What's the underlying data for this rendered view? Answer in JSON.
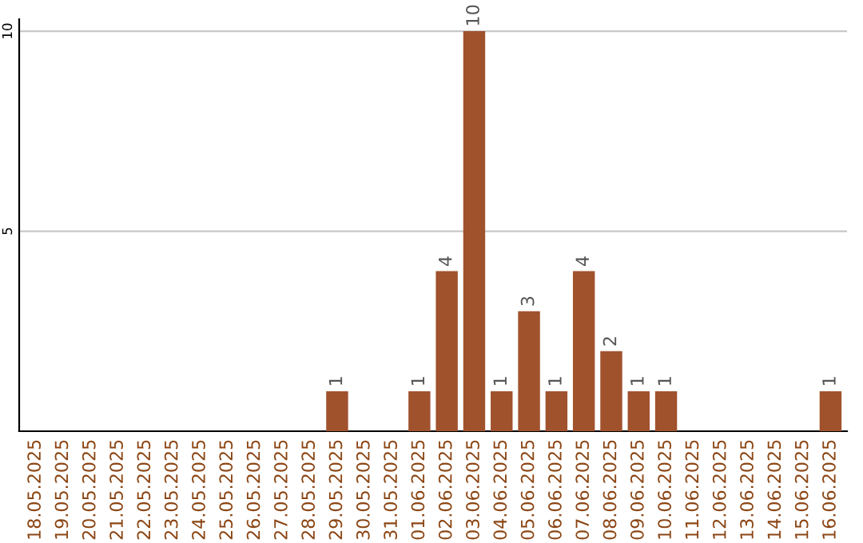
{
  "chart_data": {
    "type": "bar",
    "categories": [
      "18.05.2025",
      "19.05.2025",
      "20.05.2025",
      "21.05.2025",
      "22.05.2025",
      "23.05.2025",
      "24.05.2025",
      "25.05.2025",
      "26.05.2025",
      "27.05.2025",
      "28.05.2025",
      "29.05.2025",
      "30.05.2025",
      "31.05.2025",
      "01.06.2025",
      "02.06.2025",
      "03.06.2025",
      "04.06.2025",
      "05.06.2025",
      "06.06.2025",
      "07.06.2025",
      "08.06.2025",
      "09.06.2025",
      "10.06.2025",
      "11.06.2025",
      "12.06.2025",
      "13.06.2025",
      "14.06.2025",
      "15.06.2025",
      "16.06.2025"
    ],
    "values": [
      0,
      0,
      0,
      0,
      0,
      0,
      0,
      0,
      0,
      0,
      0,
      1,
      0,
      0,
      1,
      4,
      10,
      1,
      3,
      1,
      4,
      2,
      1,
      1,
      0,
      0,
      0,
      0,
      0,
      1
    ],
    "value_labels": [
      null,
      null,
      null,
      null,
      null,
      null,
      null,
      null,
      null,
      null,
      null,
      "1",
      null,
      null,
      "1",
      "4",
      "10",
      "1",
      "3",
      "1",
      "4",
      "2",
      "1",
      "1",
      null,
      null,
      null,
      null,
      null,
      "1"
    ],
    "color": "#a0522d",
    "ylim": [
      0,
      10.3
    ],
    "yticks": [
      5,
      10
    ],
    "grid": "y"
  }
}
